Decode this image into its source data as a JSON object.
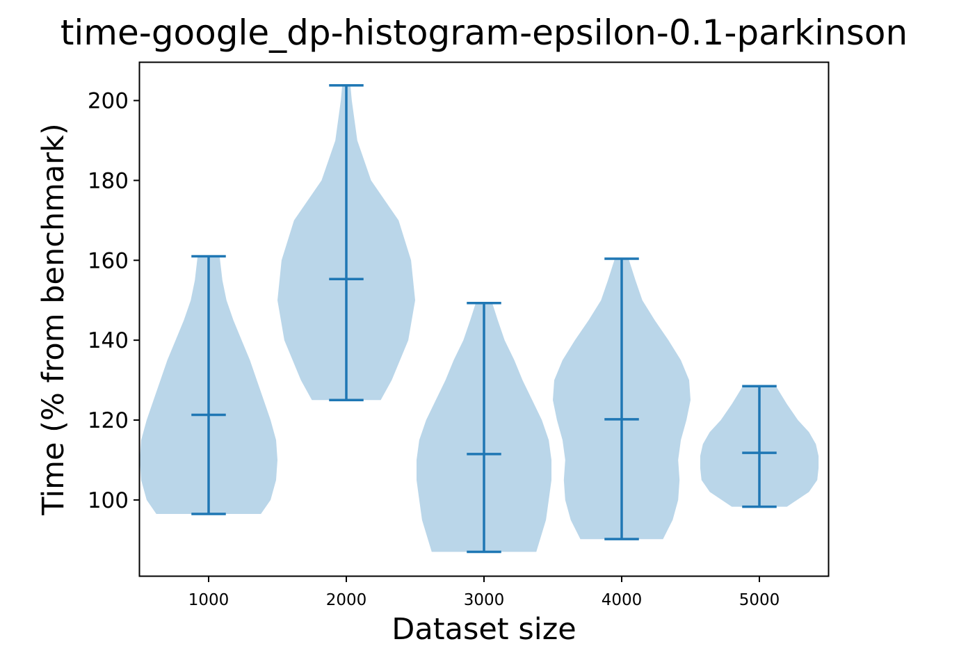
{
  "chart_data": {
    "type": "violin",
    "title": "time-google_dp-histogram-epsilon-0.1-parkinson",
    "xlabel": "Dataset size",
    "ylabel": "Time (% from benchmark)",
    "categories": [
      "1000",
      "2000",
      "3000",
      "4000",
      "5000"
    ],
    "ylim": [
      81,
      209.5
    ],
    "yticks": [
      100,
      120,
      140,
      160,
      180,
      200
    ],
    "grid": false,
    "colors": {
      "body": "#bad6e9",
      "lines": "#1f77b4"
    },
    "series": [
      {
        "category": "1000",
        "min": 96.5,
        "median": 121.3,
        "max": 161.0,
        "profile": [
          [
            96.5,
            0.38
          ],
          [
            100,
            0.45
          ],
          [
            105,
            0.49
          ],
          [
            110,
            0.5
          ],
          [
            115,
            0.49
          ],
          [
            120,
            0.45
          ],
          [
            125,
            0.4
          ],
          [
            130,
            0.35
          ],
          [
            135,
            0.3
          ],
          [
            140,
            0.24
          ],
          [
            145,
            0.18
          ],
          [
            150,
            0.13
          ],
          [
            155,
            0.1
          ],
          [
            161,
            0.08
          ]
        ]
      },
      {
        "category": "2000",
        "min": 125.0,
        "median": 155.3,
        "max": 203.8,
        "profile": [
          [
            125,
            0.25
          ],
          [
            130,
            0.33
          ],
          [
            140,
            0.45
          ],
          [
            150,
            0.5
          ],
          [
            160,
            0.47
          ],
          [
            170,
            0.38
          ],
          [
            180,
            0.18
          ],
          [
            190,
            0.08
          ],
          [
            200,
            0.04
          ],
          [
            203.8,
            0.03
          ]
        ]
      },
      {
        "category": "3000",
        "min": 87.0,
        "median": 111.5,
        "max": 149.3,
        "profile": [
          [
            87,
            0.38
          ],
          [
            95,
            0.45
          ],
          [
            100,
            0.47
          ],
          [
            105,
            0.49
          ],
          [
            110,
            0.49
          ],
          [
            115,
            0.47
          ],
          [
            120,
            0.42
          ],
          [
            125,
            0.35
          ],
          [
            130,
            0.28
          ],
          [
            135,
            0.22
          ],
          [
            140,
            0.15
          ],
          [
            145,
            0.1
          ],
          [
            149.3,
            0.06
          ]
        ]
      },
      {
        "category": "4000",
        "min": 90.2,
        "median": 120.2,
        "max": 160.4,
        "profile": [
          [
            90.2,
            0.3
          ],
          [
            95,
            0.37
          ],
          [
            100,
            0.41
          ],
          [
            105,
            0.42
          ],
          [
            110,
            0.41
          ],
          [
            115,
            0.43
          ],
          [
            120,
            0.47
          ],
          [
            125,
            0.5
          ],
          [
            130,
            0.49
          ],
          [
            135,
            0.43
          ],
          [
            140,
            0.34
          ],
          [
            145,
            0.24
          ],
          [
            150,
            0.15
          ],
          [
            155,
            0.1
          ],
          [
            160.4,
            0.05
          ]
        ]
      },
      {
        "category": "5000",
        "min": 98.3,
        "median": 111.8,
        "max": 128.5,
        "profile": [
          [
            98.3,
            0.2
          ],
          [
            102,
            0.36
          ],
          [
            105,
            0.42
          ],
          [
            108,
            0.43
          ],
          [
            111,
            0.43
          ],
          [
            114,
            0.41
          ],
          [
            117,
            0.36
          ],
          [
            120,
            0.28
          ],
          [
            124,
            0.2
          ],
          [
            128.5,
            0.12
          ]
        ]
      }
    ]
  }
}
